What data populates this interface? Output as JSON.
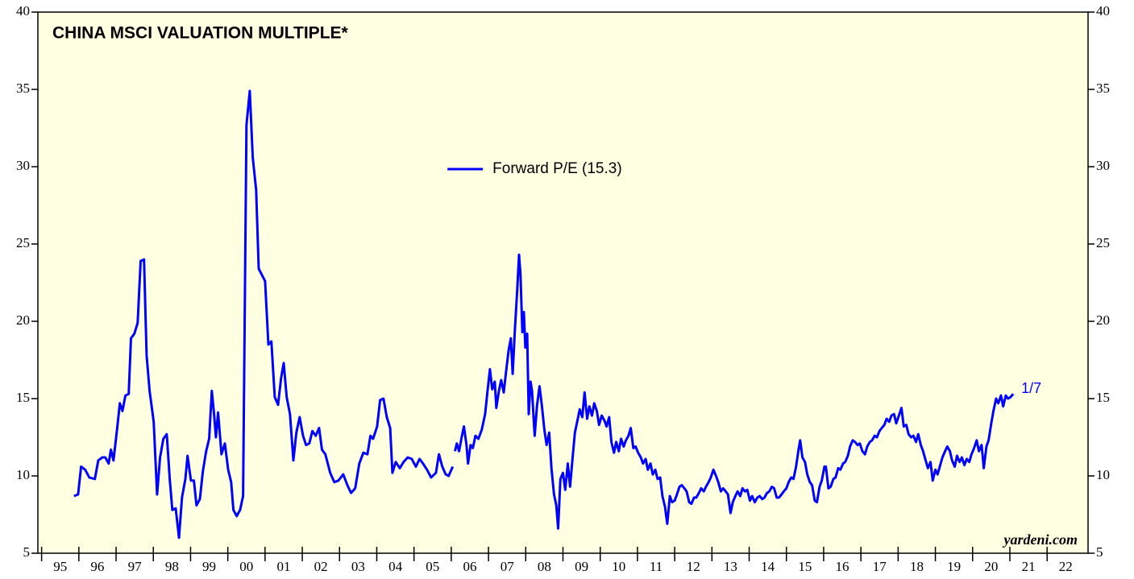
{
  "chart_data": {
    "type": "line",
    "title": "CHINA MSCI VALUATION MULTIPLE*",
    "annotation": "1/7",
    "source": "yardeni.com",
    "legend": "top-center",
    "xlim": [
      1994.9,
      2023.1
    ],
    "ylim": [
      5,
      40
    ],
    "yticks": [
      5,
      10,
      15,
      20,
      25,
      30,
      35,
      40
    ],
    "xticks": [
      {
        "value": 1995,
        "label": "95"
      },
      {
        "value": 1996,
        "label": "96"
      },
      {
        "value": 1997,
        "label": "97"
      },
      {
        "value": 1998,
        "label": "98"
      },
      {
        "value": 1999,
        "label": "99"
      },
      {
        "value": 2000,
        "label": "00"
      },
      {
        "value": 2001,
        "label": "01"
      },
      {
        "value": 2002,
        "label": "02"
      },
      {
        "value": 2003,
        "label": "03"
      },
      {
        "value": 2004,
        "label": "04"
      },
      {
        "value": 2005,
        "label": "05"
      },
      {
        "value": 2006,
        "label": "06"
      },
      {
        "value": 2007,
        "label": "07"
      },
      {
        "value": 2008,
        "label": "08"
      },
      {
        "value": 2009,
        "label": "09"
      },
      {
        "value": 2010,
        "label": "10"
      },
      {
        "value": 2011,
        "label": "11"
      },
      {
        "value": 2012,
        "label": "12"
      },
      {
        "value": 2013,
        "label": "13"
      },
      {
        "value": 2014,
        "label": "14"
      },
      {
        "value": 2015,
        "label": "15"
      },
      {
        "value": 2016,
        "label": "16"
      },
      {
        "value": 2017,
        "label": "17"
      },
      {
        "value": 2018,
        "label": "18"
      },
      {
        "value": 2019,
        "label": "19"
      },
      {
        "value": 2020,
        "label": "20"
      },
      {
        "value": 2021,
        "label": "21"
      },
      {
        "value": 2022,
        "label": "22"
      }
    ],
    "x": [
      1995.87,
      1995.98,
      1996.06,
      1996.17,
      1996.28,
      1996.43,
      1996.52,
      1996.63,
      1996.71,
      1996.8,
      1996.86,
      1996.93,
      1997.02,
      1997.1,
      1997.17,
      1997.25,
      1997.34,
      1997.4,
      1997.49,
      1997.58,
      1997.66,
      1997.75,
      1997.82,
      1997.9,
      1998.01,
      1998.1,
      1998.18,
      1998.27,
      1998.36,
      1998.44,
      1998.51,
      1998.6,
      1998.69,
      1998.77,
      1998.86,
      1998.92,
      1999.01,
      1999.09,
      1999.16,
      1999.25,
      1999.33,
      1999.42,
      1999.5,
      1999.57,
      1999.63,
      1999.68,
      1999.74,
      1999.83,
      1999.92,
      2000.01,
      2000.09,
      2000.15,
      2000.24,
      2000.33,
      2000.41,
      2000.5,
      2000.59,
      2000.67,
      2000.76,
      2000.83,
      2001.0,
      2001.09,
      2001.17,
      2001.26,
      2001.35,
      2001.43,
      2001.5,
      2001.58,
      2001.67,
      2001.76,
      2001.84,
      2001.93,
      2002.02,
      2002.1,
      2002.19,
      2002.27,
      2002.36,
      2002.45,
      2002.53,
      2002.62,
      2002.75,
      2002.86,
      2002.97,
      2003.1,
      2003.21,
      2003.31,
      2003.42,
      2003.53,
      2003.64,
      2003.75,
      2003.83,
      2003.9,
      2004.01,
      2004.09,
      2004.18,
      2004.27,
      2004.36,
      2004.42,
      2004.51,
      2004.62,
      2004.72,
      2004.83,
      2004.94,
      2005.05,
      2005.15,
      2005.24,
      2005.35,
      2005.46,
      2005.59,
      2005.67,
      2005.76,
      2005.85,
      2005.93,
      2006.04,
      2006.07,
      2006.1,
      2006.15,
      2006.21,
      2006.28,
      2006.34,
      2006.41,
      2006.45,
      2006.52,
      2006.58,
      2006.65,
      2006.73,
      2006.82,
      2006.91,
      2006.97,
      2007.04,
      2007.1,
      2007.17,
      2007.21,
      2007.28,
      2007.34,
      2007.41,
      2007.47,
      2007.54,
      2007.6,
      2007.65,
      2007.71,
      2007.77,
      2007.82,
      2007.86,
      2007.91,
      2007.95,
      2007.99,
      2008.04,
      2008.08,
      2008.13,
      2008.17,
      2008.24,
      2008.3,
      2008.37,
      2008.43,
      2008.5,
      2008.56,
      2008.63,
      2008.69,
      2008.76,
      2008.82,
      2008.87,
      2008.93,
      2009.0,
      2009.06,
      2009.13,
      2009.19,
      2009.26,
      2009.32,
      2009.39,
      2009.45,
      2009.52,
      2009.58,
      2009.65,
      2009.71,
      2009.78,
      2009.84,
      2009.91,
      2009.97,
      2010.04,
      2010.11,
      2010.17,
      2010.24,
      2010.3,
      2010.37,
      2010.43,
      2010.5,
      2010.56,
      2010.63,
      2010.69,
      2010.76,
      2010.82,
      2010.89,
      2010.95,
      2011.02,
      2011.09,
      2011.15,
      2011.22,
      2011.28,
      2011.35,
      2011.41,
      2011.48,
      2011.54,
      2011.61,
      2011.67,
      2011.74,
      2011.8,
      2011.87,
      2011.93,
      2012.0,
      2012.06,
      2012.13,
      2012.19,
      2012.26,
      2012.32,
      2012.39,
      2012.45,
      2012.52,
      2012.58,
      2012.65,
      2012.71,
      2012.78,
      2012.84,
      2012.91,
      2012.97,
      2013.04,
      2013.11,
      2013.17,
      2013.24,
      2013.3,
      2013.37,
      2013.43,
      2013.5,
      2013.56,
      2013.63,
      2013.69,
      2013.76,
      2013.82,
      2013.89,
      2013.95,
      2014.02,
      2014.08,
      2014.15,
      2014.22,
      2014.28,
      2014.35,
      2014.41,
      2014.48,
      2014.54,
      2014.61,
      2014.67,
      2014.74,
      2014.8,
      2014.87,
      2014.93,
      2015.0,
      2015.06,
      2015.13,
      2015.19,
      2015.26,
      2015.32,
      2015.37,
      2015.43,
      2015.5,
      2015.56,
      2015.63,
      2015.69,
      2015.76,
      2015.82,
      2015.89,
      2015.95,
      2016.02,
      2016.06,
      2016.13,
      2016.19,
      2016.26,
      2016.32,
      2016.39,
      2016.45,
      2016.52,
      2016.58,
      2016.65,
      2016.71,
      2016.78,
      2016.84,
      2016.91,
      2016.97,
      2017.04,
      2017.11,
      2017.17,
      2017.24,
      2017.3,
      2017.37,
      2017.43,
      2017.5,
      2017.56,
      2017.63,
      2017.69,
      2017.76,
      2017.82,
      2017.89,
      2017.95,
      2018.02,
      2018.09,
      2018.15,
      2018.22,
      2018.28,
      2018.35,
      2018.41,
      2018.48,
      2018.54,
      2018.61,
      2018.67,
      2018.74,
      2018.8,
      2018.87,
      2018.93,
      2019.0,
      2019.06,
      2019.13,
      2019.19,
      2019.26,
      2019.32,
      2019.39,
      2019.45,
      2019.52,
      2019.58,
      2019.65,
      2019.71,
      2019.78,
      2019.84,
      2019.91,
      2019.97,
      2020.04,
      2020.11,
      2020.17,
      2020.24,
      2020.3,
      2020.37,
      2020.43,
      2020.5,
      2020.56,
      2020.63,
      2020.69,
      2020.76,
      2020.82,
      2020.89,
      2020.95,
      2021.02,
      2021.09
    ],
    "series": [
      {
        "name": "Forward P/E (15.3)",
        "color": "#0000ff",
        "values": [
          8.7,
          8.8,
          10.6,
          10.4,
          9.9,
          9.8,
          11.0,
          11.2,
          11.2,
          10.8,
          11.7,
          11.0,
          12.9,
          14.7,
          14.2,
          15.2,
          15.3,
          18.9,
          19.2,
          19.9,
          23.9,
          24.0,
          17.8,
          15.5,
          13.5,
          8.8,
          11.2,
          12.4,
          12.7,
          9.8,
          7.8,
          7.9,
          6.0,
          8.6,
          9.8,
          11.3,
          9.7,
          9.7,
          8.1,
          8.5,
          10.3,
          11.6,
          12.4,
          15.5,
          14.0,
          12.5,
          14.1,
          11.4,
          12.1,
          10.4,
          9.6,
          7.8,
          7.4,
          7.8,
          8.7,
          32.7,
          34.9,
          30.6,
          28.5,
          23.4,
          22.6,
          18.5,
          18.7,
          15.1,
          14.6,
          16.3,
          17.3,
          15.1,
          14.0,
          11.0,
          12.8,
          13.8,
          12.6,
          12.0,
          12.1,
          12.9,
          12.6,
          13.1,
          11.7,
          11.4,
          10.2,
          9.6,
          9.7,
          10.1,
          9.4,
          8.9,
          9.2,
          10.8,
          11.5,
          11.4,
          12.6,
          12.4,
          13.2,
          14.9,
          15.0,
          13.8,
          13.1,
          10.2,
          10.9,
          10.5,
          10.9,
          11.2,
          11.1,
          10.6,
          11.1,
          10.8,
          10.4,
          9.9,
          10.2,
          11.4,
          10.6,
          10.1,
          10.0,
          10.6,
          null,
          11.6,
          12.1,
          11.6,
          12.5,
          13.2,
          12.0,
          10.8,
          12.0,
          11.8,
          12.6,
          12.4,
          13.0,
          14.0,
          15.4,
          16.9,
          15.6,
          16.1,
          14.4,
          15.5,
          16.2,
          15.4,
          16.7,
          18.1,
          18.9,
          16.6,
          19.5,
          22.0,
          24.3,
          23.0,
          19.3,
          20.6,
          18.3,
          19.2,
          14.0,
          16.1,
          15.5,
          12.6,
          14.5,
          15.8,
          14.6,
          13.0,
          12.0,
          12.8,
          10.5,
          8.8,
          8.1,
          6.6,
          9.8,
          10.2,
          9.1,
          10.8,
          9.3,
          11.2,
          12.8,
          13.6,
          14.3,
          13.8,
          15.4,
          13.7,
          14.5,
          13.9,
          14.7,
          14.2,
          13.3,
          13.9,
          13.6,
          13.2,
          13.8,
          12.2,
          11.5,
          12.2,
          11.6,
          12.4,
          11.9,
          12.3,
          12.6,
          13.1,
          11.8,
          11.9,
          11.5,
          11.2,
          10.8,
          11.1,
          10.4,
          10.8,
          10.1,
          10.4,
          9.8,
          9.9,
          8.7,
          8.0,
          6.9,
          8.7,
          8.3,
          8.4,
          8.8,
          9.3,
          9.4,
          9.2,
          9.0,
          8.3,
          8.2,
          8.6,
          8.6,
          8.9,
          9.2,
          9.0,
          9.3,
          9.6,
          9.9,
          10.4,
          10.0,
          9.6,
          9.0,
          9.2,
          9.0,
          8.8,
          7.6,
          8.3,
          8.7,
          9.0,
          8.7,
          9.2,
          9.0,
          9.1,
          8.4,
          8.7,
          8.3,
          8.6,
          8.7,
          8.5,
          8.6,
          8.9,
          9.0,
          9.3,
          9.2,
          8.6,
          8.6,
          8.8,
          9.0,
          9.2,
          9.6,
          9.9,
          9.8,
          10.6,
          11.6,
          12.3,
          11.2,
          10.9,
          10.1,
          9.6,
          9.4,
          8.4,
          8.3,
          9.3,
          9.7,
          10.6,
          10.6,
          9.2,
          9.3,
          9.8,
          9.9,
          10.5,
          10.4,
          10.8,
          10.9,
          11.3,
          11.9,
          12.3,
          12.2,
          12.0,
          12.1,
          11.6,
          11.4,
          11.9,
          12.2,
          12.3,
          12.6,
          12.5,
          12.9,
          13.1,
          13.3,
          13.7,
          13.5,
          13.9,
          14.0,
          13.4,
          13.9,
          14.4,
          13.2,
          13.3,
          12.7,
          12.5,
          12.6,
          12.2,
          12.7,
          12.0,
          11.6,
          11.0,
          10.5,
          10.9,
          9.7,
          10.4,
          10.1,
          10.7,
          11.2,
          11.6,
          11.9,
          11.6,
          11.0,
          10.6,
          11.3,
          10.9,
          11.2,
          10.7,
          11.1,
          10.9,
          11.4,
          11.8,
          12.3,
          11.6,
          12.0,
          10.5,
          11.9,
          12.3,
          13.4,
          14.2,
          15.0,
          14.7,
          15.2,
          14.5,
          15.2,
          15.0,
          15.1,
          15.3
        ]
      }
    ]
  }
}
